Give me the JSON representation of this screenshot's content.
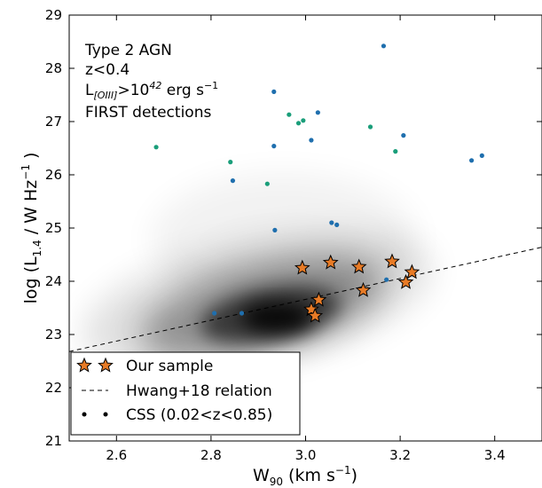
{
  "chart_data": {
    "type": "scatter",
    "xlabel_main": "W",
    "xlabel_sub": "90",
    "xlabel_unit": " (km s",
    "xlabel_sup": "−1",
    "xlabel_close": ")",
    "ylabel_main": "log (L",
    "ylabel_sub": "1.4",
    "ylabel_unit": " / W Hz",
    "ylabel_sup": "−1",
    "ylabel_close": " )",
    "xlim": [
      2.5,
      3.5
    ],
    "ylim": [
      21,
      29
    ],
    "xticks": [
      "2.6",
      "2.8",
      "3.0",
      "3.2",
      "3.4"
    ],
    "yticks": [
      "21",
      "22",
      "23",
      "24",
      "25",
      "26",
      "27",
      "28",
      "29"
    ],
    "annotation": {
      "line1": "Type 2 AGN",
      "line2": "z<0.4",
      "line3_main": "L",
      "line3_sub": "[OIII]",
      "line3_gt": ">10",
      "line3_sup": "42",
      "line3_unit": " erg s",
      "line3_unit_sup": "−1",
      "line4": "FIRST detections"
    },
    "legend": {
      "position": "lower-left",
      "entries": [
        "Our sample",
        "Hwang+18 relation",
        "CSS (0.02<z<0.85)"
      ]
    },
    "colors": {
      "our_sample": "#e87b26",
      "css_blue": "#1f6fae",
      "css_green": "#1a9e7a",
      "density": "#000000"
    },
    "series": [
      {
        "name": "Our sample",
        "marker": "star",
        "x": [
          2.993,
          3.053,
          3.113,
          3.183,
          3.225,
          3.212,
          3.122,
          3.028,
          3.012,
          3.02
        ],
        "y": [
          24.25,
          24.35,
          24.27,
          24.37,
          24.17,
          23.98,
          23.83,
          23.65,
          23.47,
          23.35
        ]
      },
      {
        "name": "CSS (0.02<z<0.85)",
        "marker": "dot",
        "x": [
          3.165,
          2.933,
          3.026,
          3.012,
          2.933,
          3.207,
          2.846,
          2.935,
          3.055,
          3.066,
          3.351,
          3.373,
          3.171,
          2.807,
          2.865
        ],
        "y": [
          28.42,
          27.56,
          27.17,
          26.65,
          26.54,
          26.74,
          25.89,
          24.96,
          25.1,
          25.06,
          26.27,
          26.36,
          24.03,
          23.4,
          23.4
        ],
        "color": "#1f6fae"
      },
      {
        "marker": "dot",
        "x": [
          2.684,
          2.965,
          2.985,
          2.995,
          3.137,
          3.19,
          2.841,
          2.919
        ],
        "y": [
          26.52,
          27.13,
          26.97,
          27.02,
          26.9,
          26.44,
          26.24,
          25.83
        ],
        "color": "#1a9e7a"
      }
    ],
    "relation": {
      "name": "Hwang+18 relation",
      "style": "dashed",
      "x": [
        2.5,
        3.5
      ],
      "y": [
        22.68,
        24.64
      ]
    },
    "density_peak": {
      "x": 2.96,
      "y": 23.3
    }
  }
}
